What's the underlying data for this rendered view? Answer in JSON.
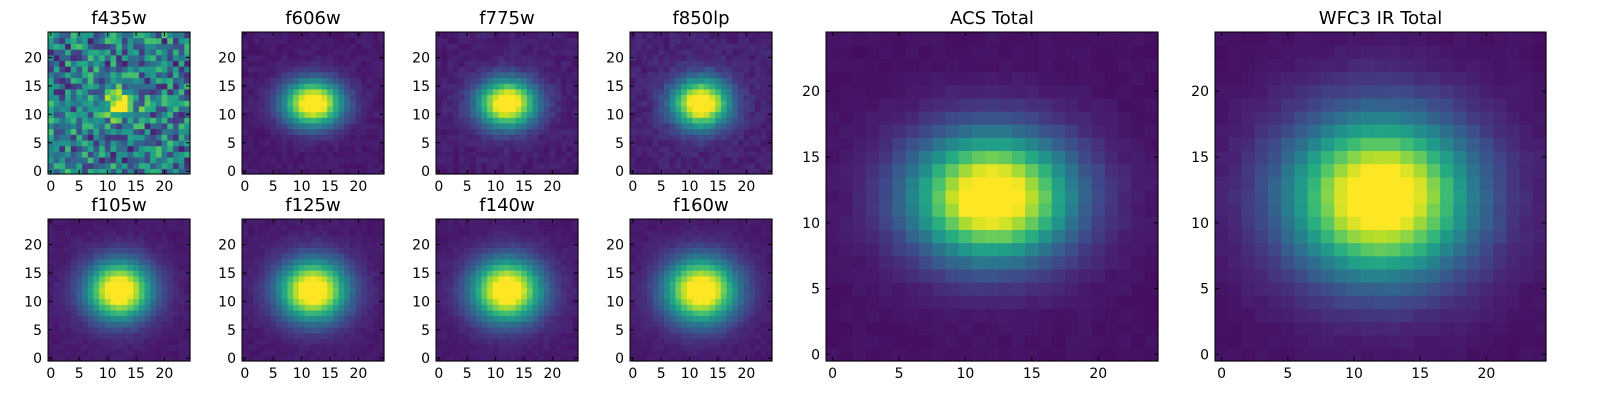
{
  "chart_data": {
    "type": "heatmap",
    "colormap": "viridis",
    "grid": false,
    "legend": "none",
    "panels": [
      {
        "key": "f435w",
        "title": "f435w",
        "xlim": [
          0,
          24
        ],
        "ylim": [
          0,
          24
        ],
        "xticks": [
          "0",
          "5",
          "10",
          "15",
          "20"
        ],
        "yticks": [
          "0",
          "5",
          "10",
          "15",
          "20"
        ],
        "peak": [
          12,
          12
        ],
        "sigma": [
          2.0,
          1.8
        ],
        "noise": 0.55,
        "floor": 0.35
      },
      {
        "key": "f606w",
        "title": "f606w",
        "xlim": [
          0,
          24
        ],
        "ylim": [
          0,
          24
        ],
        "xticks": [
          "0",
          "5",
          "10",
          "15",
          "20"
        ],
        "yticks": [
          "0",
          "5",
          "10",
          "15",
          "20"
        ],
        "peak": [
          12,
          12
        ],
        "sigma": [
          3.6,
          2.8
        ],
        "noise": 0.04,
        "floor": 0.06
      },
      {
        "key": "f775w",
        "title": "f775w",
        "xlim": [
          0,
          24
        ],
        "ylim": [
          0,
          24
        ],
        "xticks": [
          "0",
          "5",
          "10",
          "15",
          "20"
        ],
        "yticks": [
          "0",
          "5",
          "10",
          "15",
          "20"
        ],
        "peak": [
          12,
          12
        ],
        "sigma": [
          3.6,
          2.9
        ],
        "noise": 0.05,
        "floor": 0.07
      },
      {
        "key": "f850lp",
        "title": "f850lp",
        "xlim": [
          0,
          24
        ],
        "ylim": [
          0,
          24
        ],
        "xticks": [
          "0",
          "5",
          "10",
          "15",
          "20"
        ],
        "yticks": [
          "0",
          "5",
          "10",
          "15",
          "20"
        ],
        "peak": [
          12,
          12
        ],
        "sigma": [
          3.5,
          3.0
        ],
        "noise": 0.06,
        "floor": 0.08
      },
      {
        "key": "f105w",
        "title": "f105w",
        "xlim": [
          0,
          24
        ],
        "ylim": [
          0,
          24
        ],
        "xticks": [
          "0",
          "5",
          "10",
          "15",
          "20"
        ],
        "yticks": [
          "0",
          "5",
          "10",
          "15",
          "20"
        ],
        "peak": [
          12,
          12
        ],
        "sigma": [
          4.0,
          3.6
        ],
        "noise": 0.03,
        "floor": 0.06
      },
      {
        "key": "f125w",
        "title": "f125w",
        "xlim": [
          0,
          24
        ],
        "ylim": [
          0,
          24
        ],
        "xticks": [
          "0",
          "5",
          "10",
          "15",
          "20"
        ],
        "yticks": [
          "0",
          "5",
          "10",
          "15",
          "20"
        ],
        "peak": [
          12,
          12
        ],
        "sigma": [
          4.2,
          3.7
        ],
        "noise": 0.03,
        "floor": 0.06
      },
      {
        "key": "f140w",
        "title": "f140w",
        "xlim": [
          0,
          24
        ],
        "ylim": [
          0,
          24
        ],
        "xticks": [
          "0",
          "5",
          "10",
          "15",
          "20"
        ],
        "yticks": [
          "0",
          "5",
          "10",
          "15",
          "20"
        ],
        "peak": [
          12,
          12
        ],
        "sigma": [
          4.3,
          3.8
        ],
        "noise": 0.03,
        "floor": 0.06
      },
      {
        "key": "f160w",
        "title": "f160w",
        "xlim": [
          0,
          24
        ],
        "ylim": [
          0,
          24
        ],
        "xticks": [
          "0",
          "5",
          "10",
          "15",
          "20"
        ],
        "yticks": [
          "0",
          "5",
          "10",
          "15",
          "20"
        ],
        "peak": [
          12,
          12
        ],
        "sigma": [
          4.4,
          3.9
        ],
        "noise": 0.03,
        "floor": 0.06
      },
      {
        "key": "acs_total",
        "title": "ACS Total",
        "xlim": [
          0,
          24
        ],
        "ylim": [
          0,
          24
        ],
        "xticks": [
          "0",
          "5",
          "10",
          "15",
          "20"
        ],
        "yticks": [
          "0",
          "5",
          "10",
          "15",
          "20"
        ],
        "peak": [
          12,
          12
        ],
        "sigma": [
          4.2,
          3.3
        ],
        "noise": 0.02,
        "floor": 0.04
      },
      {
        "key": "wfc3_ir_total",
        "title": "WFC3 IR Total",
        "xlim": [
          0,
          24
        ],
        "ylim": [
          0,
          24
        ],
        "xticks": [
          "0",
          "5",
          "10",
          "15",
          "20"
        ],
        "yticks": [
          "0",
          "5",
          "10",
          "15",
          "20"
        ],
        "peak": [
          12,
          12
        ],
        "sigma": [
          4.8,
          4.2
        ],
        "noise": 0.02,
        "floor": 0.04
      }
    ]
  }
}
